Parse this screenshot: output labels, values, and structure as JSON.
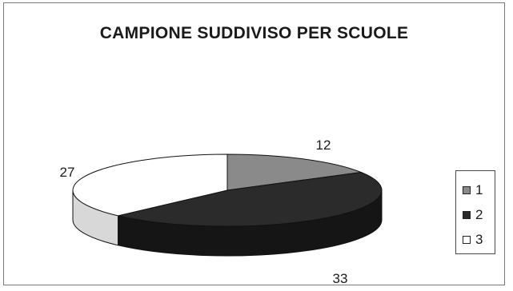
{
  "chart_data": {
    "type": "pie",
    "title": "CAMPIONE SUDDIVISO PER SCUOLE",
    "categories": [
      "1",
      "2",
      "3"
    ],
    "values": [
      12,
      33,
      27
    ],
    "data_labels": [
      "12",
      "33",
      "27"
    ],
    "colors": [
      "#8a8a8a",
      "#2b2b2b",
      "#ffffff"
    ],
    "legend": {
      "placement": "right",
      "entries": [
        "1",
        "2",
        "3"
      ]
    },
    "three_d": true
  }
}
